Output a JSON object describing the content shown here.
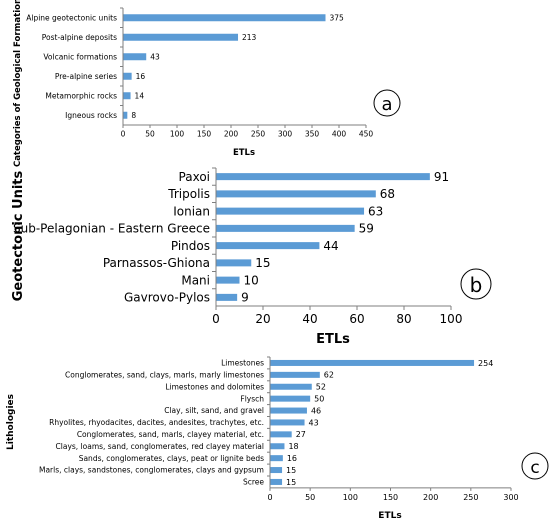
{
  "colors": {
    "bar": "#5b9bd5",
    "axis": "#7f7f7f"
  },
  "chart_data": [
    {
      "type": "bar",
      "orientation": "horizontal",
      "panel_label": "a",
      "title": "",
      "ylabel": "Categories of Geological Formations",
      "xlabel": "ETLs",
      "xlim": [
        0,
        450
      ],
      "xticks": [
        0,
        50,
        100,
        150,
        200,
        250,
        300,
        350,
        400,
        450
      ],
      "grid": false,
      "categories": [
        "Alpine geotectonic units",
        "Post-alpine deposits",
        "Volcanic formations",
        "Pre-alpine series",
        "Metamorphic rocks",
        "Igneous rocks"
      ],
      "values": [
        375,
        213,
        43,
        16,
        14,
        8
      ]
    },
    {
      "type": "bar",
      "orientation": "horizontal",
      "panel_label": "b",
      "title": "",
      "ylabel": "Geotectonic Units",
      "xlabel": "ETLs",
      "xlim": [
        0,
        100
      ],
      "xticks": [
        0,
        20,
        40,
        60,
        80,
        100
      ],
      "grid": false,
      "categories": [
        "Paxoi",
        "Tripolis",
        "Ionian",
        "Sub-Pelagonian - Eastern Greece",
        "Pindos",
        "Parnassos-Ghiona",
        "Mani",
        "Gavrovo-Pylos"
      ],
      "values": [
        91,
        68,
        63,
        59,
        44,
        15,
        10,
        9
      ]
    },
    {
      "type": "bar",
      "orientation": "horizontal",
      "panel_label": "c",
      "title": "",
      "ylabel": "Lithologies",
      "xlabel": "ETLs",
      "xlim": [
        0,
        300
      ],
      "xticks": [
        0,
        50,
        100,
        150,
        200,
        250,
        300
      ],
      "grid": false,
      "categories": [
        "Limestones",
        "Conglomerates, sand, clays, marls, marly limestones",
        "Limestones and dolomites",
        "Flysch",
        "Clay, silt, sand, and gravel",
        "Rhyolites, rhyodacites, dacites, andesites, trachytes, etc.",
        "Conglomerates, sand, marls, clayey material, etc.",
        "Clays, loams, sand, conglomerates, red clayey material",
        "Sands, conglomerates, clays, peat or lignite beds",
        "Marls, clays, sandstones, conglomerates, clays and gypsum",
        "Scree"
      ],
      "values": [
        254,
        62,
        52,
        50,
        46,
        43,
        27,
        18,
        16,
        15,
        15
      ]
    }
  ]
}
